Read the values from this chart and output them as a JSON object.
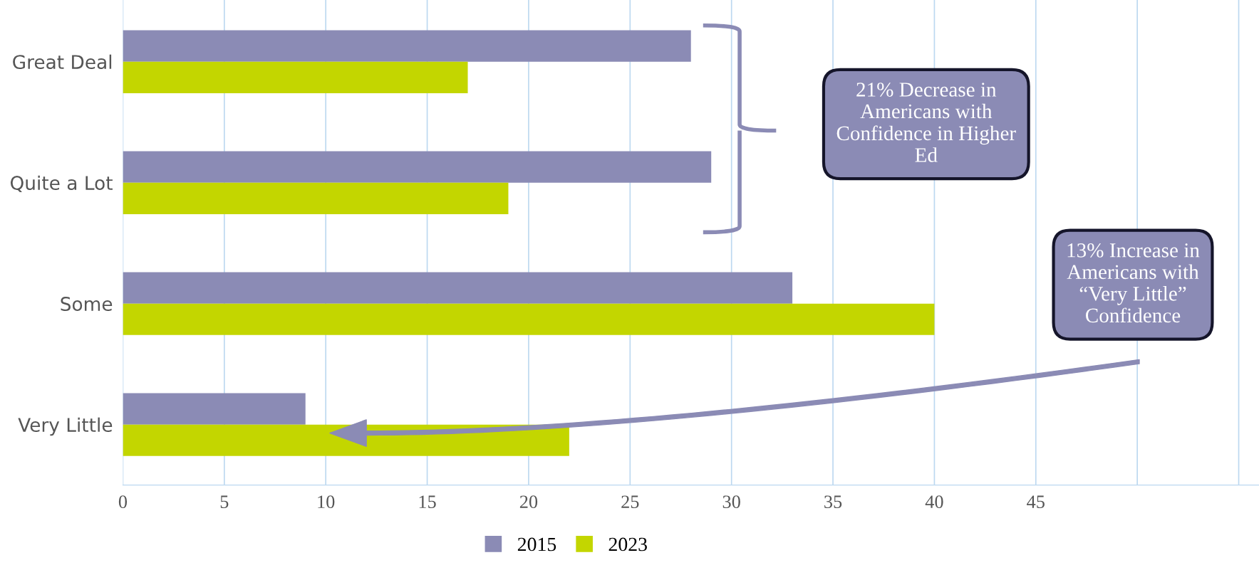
{
  "chart_data": {
    "type": "bar",
    "orientation": "horizontal",
    "categories": [
      "Great Deal",
      "Quite a Lot",
      "Some",
      "Very Little"
    ],
    "series": [
      {
        "name": "2015",
        "color": "#8b8bb5",
        "values": [
          28,
          29,
          33,
          9
        ]
      },
      {
        "name": "2023",
        "color": "#c3d600",
        "values": [
          17,
          19,
          40,
          22
        ]
      }
    ],
    "xlim": [
      0,
      56
    ],
    "xticks": [
      0,
      5,
      10,
      15,
      20,
      25,
      30,
      35,
      40,
      45,
      {
        "value": 50,
        "label": null
      },
      {
        "value": 55,
        "label": null
      }
    ],
    "grid": "x",
    "legend": "bottom",
    "annotations": [
      "21% Decrease in\nAmericans with\nConfidence in Higher\nEd",
      "13% Increase in\nAmericans with\n“Very Little”\nConfidence"
    ]
  }
}
